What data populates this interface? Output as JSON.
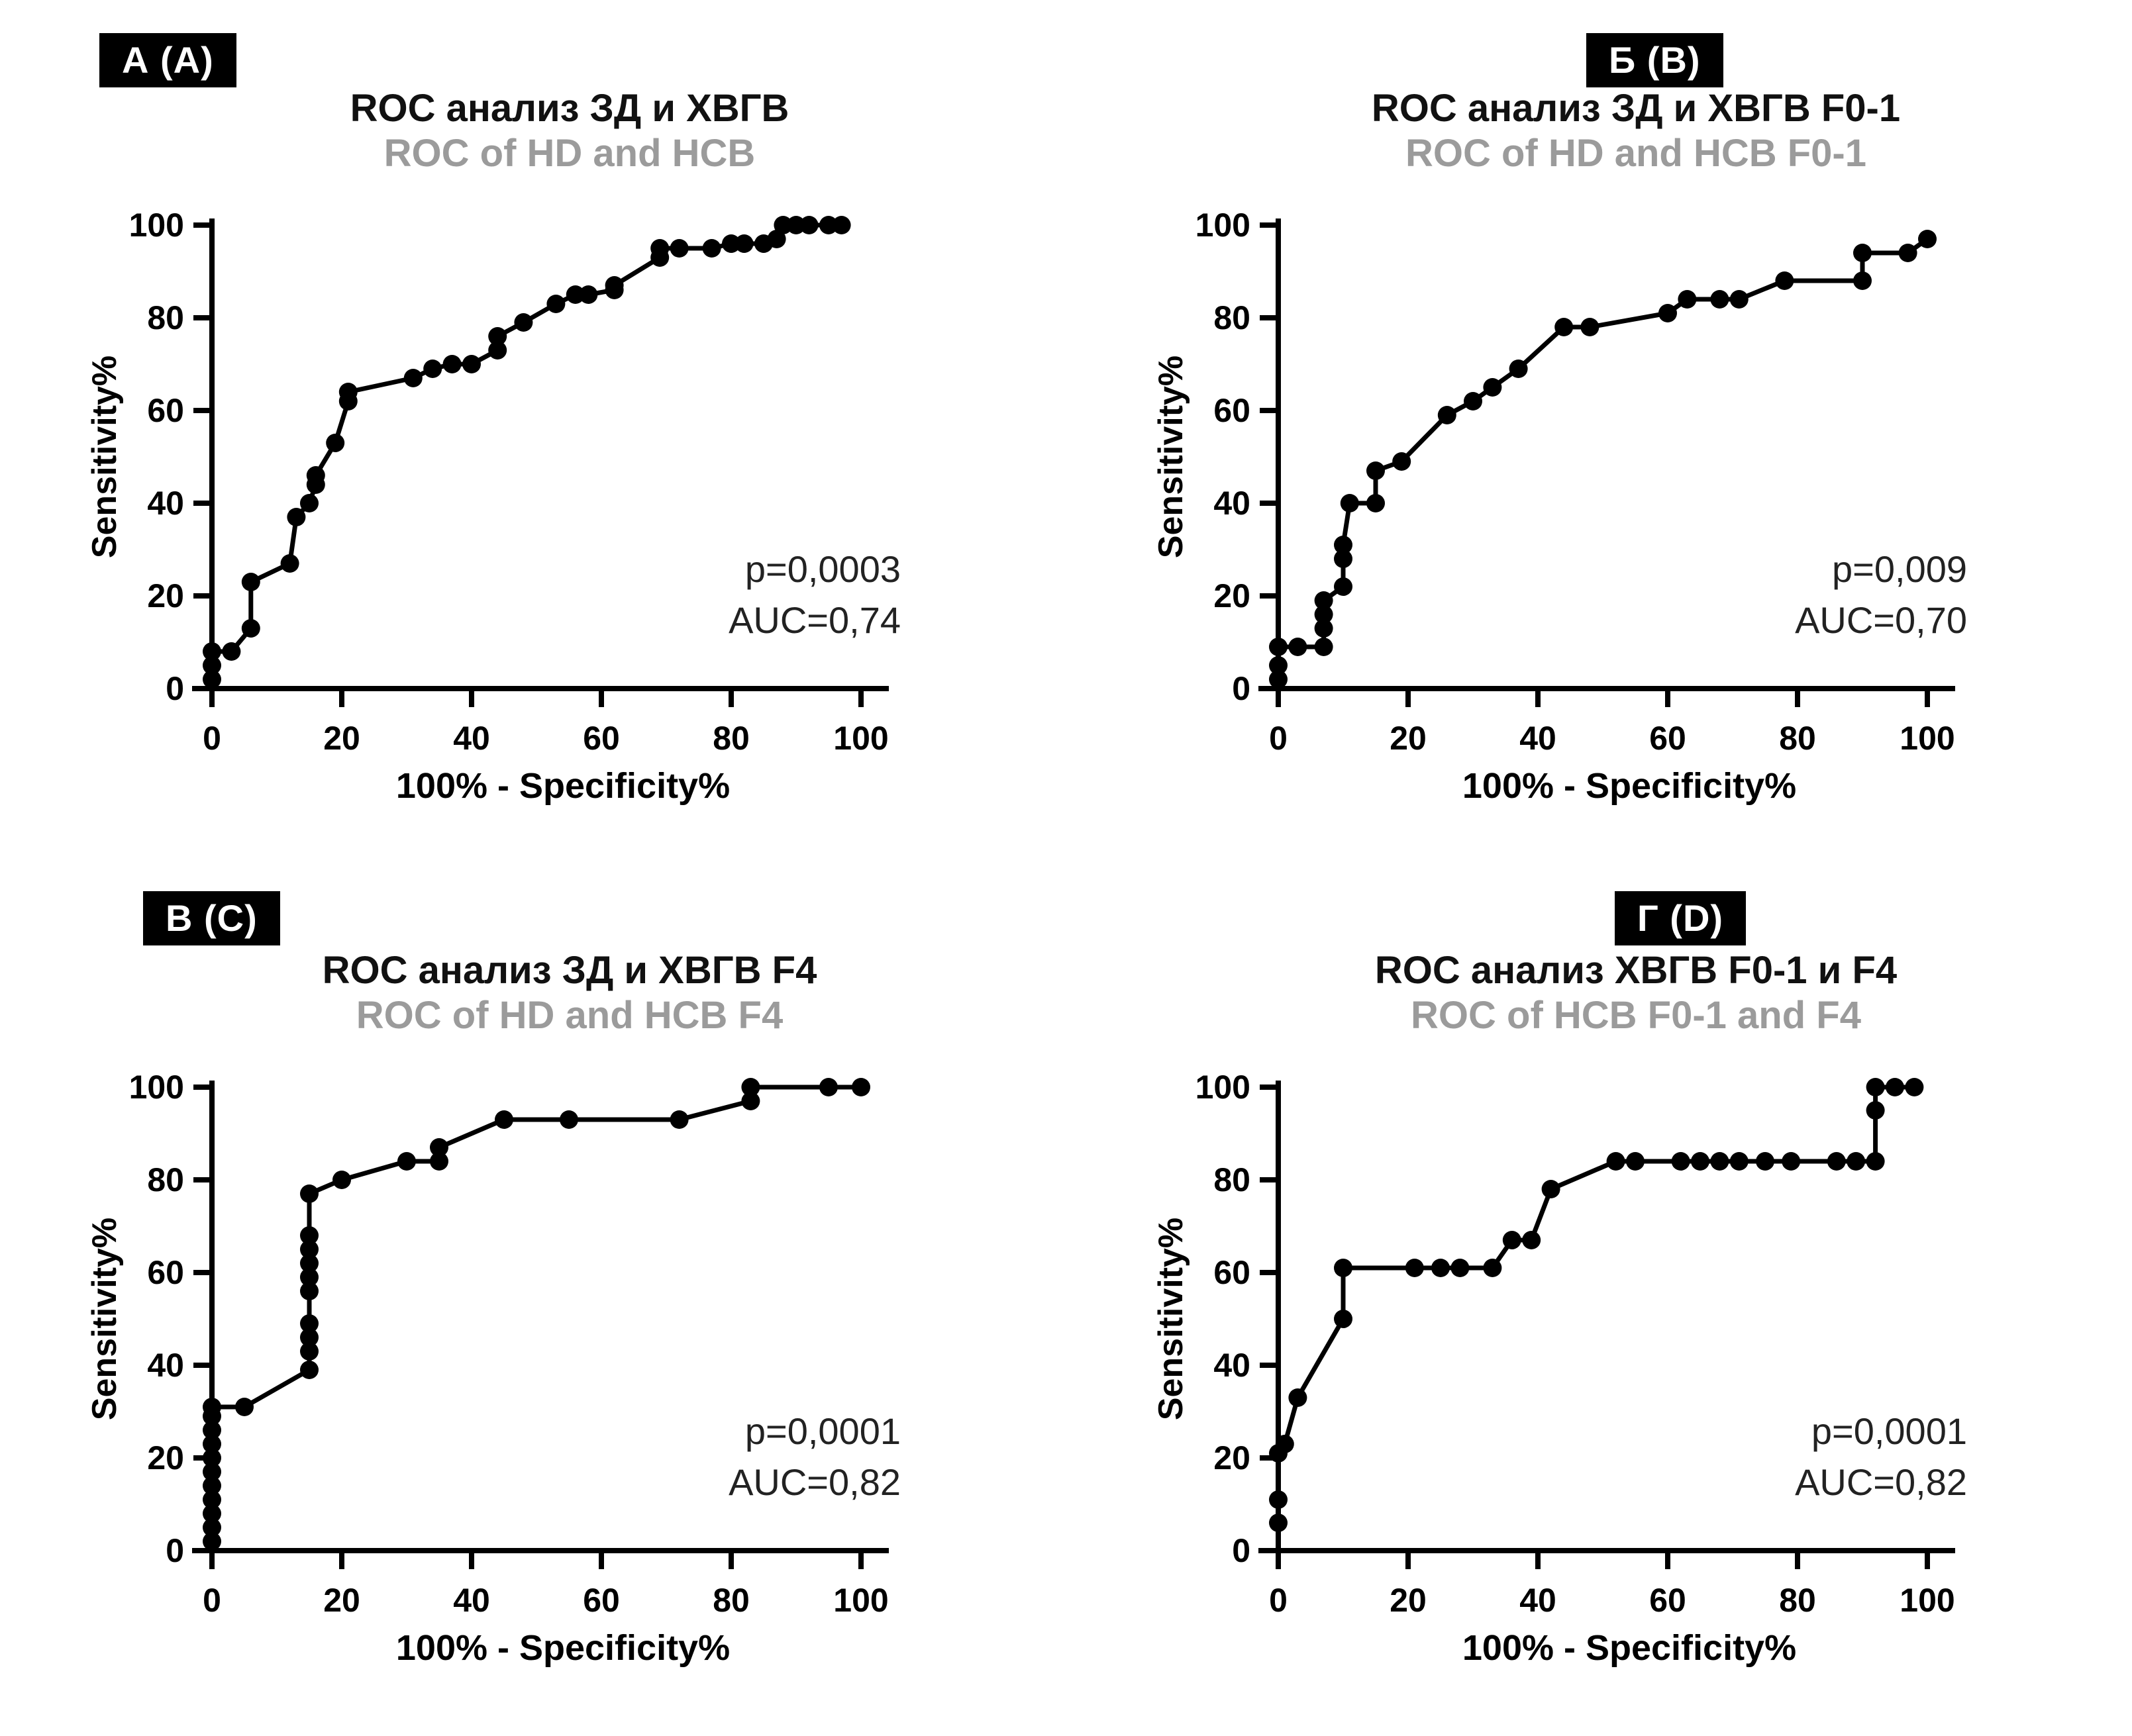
{
  "figure": {
    "background": "#ffffff"
  },
  "colors": {
    "curve": "#000000",
    "axis": "#000000",
    "title_ru": "#111111",
    "title_en": "#9b9b9b",
    "stats_text": "#222222",
    "badge_bg": "#000000",
    "badge_text": "#ffffff"
  },
  "chart_data": {
    "type": "line",
    "description": "Four ROC curve panels with dot markers (GraphPad-style), Russian/English bilingual titles",
    "axes": {
      "xlabel": "100%  - Specificity%",
      "ylabel": "Sensitivity%",
      "xlim": [
        0,
        100
      ],
      "ylim": [
        0,
        100
      ],
      "x_ticks": [
        0,
        20,
        40,
        60,
        80,
        100
      ],
      "y_ticks": [
        0,
        20,
        40,
        60,
        80,
        100
      ],
      "grid": false,
      "legend": "none"
    },
    "panels": [
      {
        "panel_label": "А (A)",
        "title_ru": "ROC анализ ЗД и ХВГВ",
        "title_en": "ROC of HD and HCB",
        "stats": {
          "p": "p=0,0003",
          "auc": "AUC=0,74"
        },
        "points": [
          [
            0,
            2
          ],
          [
            0,
            5
          ],
          [
            0,
            8
          ],
          [
            3,
            8
          ],
          [
            6,
            13
          ],
          [
            6,
            23
          ],
          [
            12,
            27
          ],
          [
            13,
            37
          ],
          [
            15,
            40
          ],
          [
            16,
            44
          ],
          [
            16,
            46
          ],
          [
            19,
            53
          ],
          [
            21,
            62
          ],
          [
            21,
            64
          ],
          [
            31,
            67
          ],
          [
            34,
            69
          ],
          [
            37,
            70
          ],
          [
            40,
            70
          ],
          [
            44,
            73
          ],
          [
            44,
            76
          ],
          [
            48,
            79
          ],
          [
            53,
            83
          ],
          [
            56,
            85
          ],
          [
            58,
            85
          ],
          [
            62,
            86
          ],
          [
            62,
            87
          ],
          [
            69,
            93
          ],
          [
            69,
            95
          ],
          [
            72,
            95
          ],
          [
            77,
            95
          ],
          [
            80,
            96
          ],
          [
            82,
            96
          ],
          [
            85,
            96
          ],
          [
            87,
            97
          ],
          [
            88,
            100
          ],
          [
            90,
            100
          ],
          [
            92,
            100
          ],
          [
            95,
            100
          ],
          [
            97,
            100
          ]
        ]
      },
      {
        "panel_label": "Б (B)",
        "title_ru": "ROC анализ ЗД и ХВГВ F0-1",
        "title_en": "ROC of HD and HCB F0-1",
        "stats": {
          "p": "p=0,009",
          "auc": "AUC=0,70"
        },
        "points": [
          [
            0,
            2
          ],
          [
            0,
            5
          ],
          [
            0,
            9
          ],
          [
            3,
            9
          ],
          [
            7,
            9
          ],
          [
            7,
            13
          ],
          [
            7,
            16
          ],
          [
            7,
            19
          ],
          [
            10,
            22
          ],
          [
            10,
            28
          ],
          [
            10,
            31
          ],
          [
            11,
            40
          ],
          [
            15,
            40
          ],
          [
            15,
            47
          ],
          [
            19,
            49
          ],
          [
            26,
            59
          ],
          [
            30,
            62
          ],
          [
            33,
            65
          ],
          [
            37,
            69
          ],
          [
            44,
            78
          ],
          [
            48,
            78
          ],
          [
            60,
            81
          ],
          [
            63,
            84
          ],
          [
            68,
            84
          ],
          [
            71,
            84
          ],
          [
            78,
            88
          ],
          [
            90,
            88
          ],
          [
            90,
            94
          ],
          [
            97,
            94
          ],
          [
            100,
            97
          ]
        ]
      },
      {
        "panel_label": "В (C)",
        "title_ru": "ROC анализ ЗД и ХВГВ F4",
        "title_en": "ROC of HD and HCB F4",
        "stats": {
          "p": "p=0,0001",
          "auc": "AUC=0,82"
        },
        "points": [
          [
            0,
            2
          ],
          [
            0,
            5
          ],
          [
            0,
            8
          ],
          [
            0,
            11
          ],
          [
            0,
            14
          ],
          [
            0,
            17
          ],
          [
            0,
            20
          ],
          [
            0,
            23
          ],
          [
            0,
            26
          ],
          [
            0,
            29
          ],
          [
            0,
            31
          ],
          [
            5,
            31
          ],
          [
            15,
            39
          ],
          [
            15,
            43
          ],
          [
            15,
            46
          ],
          [
            15,
            49
          ],
          [
            15,
            56
          ],
          [
            15,
            59
          ],
          [
            15,
            62
          ],
          [
            15,
            65
          ],
          [
            15,
            68
          ],
          [
            15,
            77
          ],
          [
            20,
            80
          ],
          [
            30,
            84
          ],
          [
            35,
            84
          ],
          [
            35,
            87
          ],
          [
            45,
            93
          ],
          [
            55,
            93
          ],
          [
            72,
            93
          ],
          [
            83,
            97
          ],
          [
            83,
            100
          ],
          [
            95,
            100
          ],
          [
            100,
            100
          ]
        ]
      },
      {
        "panel_label": "Г (D)",
        "title_ru": "ROC анализ ХВГВ F0-1 и F4",
        "title_en": "ROC of HCB F0-1 and F4",
        "stats": {
          "p": "p=0,0001",
          "auc": "AUC=0,82"
        },
        "points": [
          [
            0,
            6
          ],
          [
            0,
            11
          ],
          [
            0,
            21
          ],
          [
            1,
            23
          ],
          [
            3,
            33
          ],
          [
            10,
            50
          ],
          [
            10,
            61
          ],
          [
            21,
            61
          ],
          [
            25,
            61
          ],
          [
            28,
            61
          ],
          [
            33,
            61
          ],
          [
            36,
            67
          ],
          [
            39,
            67
          ],
          [
            42,
            78
          ],
          [
            52,
            84
          ],
          [
            55,
            84
          ],
          [
            62,
            84
          ],
          [
            65,
            84
          ],
          [
            68,
            84
          ],
          [
            71,
            84
          ],
          [
            75,
            84
          ],
          [
            79,
            84
          ],
          [
            86,
            84
          ],
          [
            89,
            84
          ],
          [
            92,
            84
          ],
          [
            92,
            95
          ],
          [
            92,
            100
          ],
          [
            95,
            100
          ],
          [
            98,
            100
          ]
        ]
      }
    ]
  }
}
